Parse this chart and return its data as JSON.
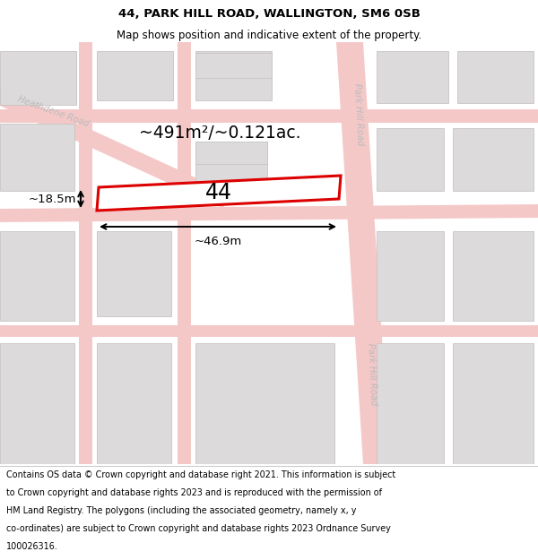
{
  "title_line1": "44, PARK HILL ROAD, WALLINGTON, SM6 0SB",
  "title_line2": "Map shows position and indicative extent of the property.",
  "footer_lines": [
    "Contains OS data © Crown copyright and database right 2021. This information is subject",
    "to Crown copyright and database rights 2023 and is reproduced with the permission of",
    "HM Land Registry. The polygons (including the associated geometry, namely x, y",
    "co-ordinates) are subject to Crown copyright and database rights 2023 Ordnance Survey",
    "100026316."
  ],
  "map_bg": "#f2f0f0",
  "road_fill": "#f5c8c8",
  "road_line": "#e8a0a0",
  "bld_fill": "#dcdada",
  "bld_edge": "#c8c4c4",
  "hi_fill": "#ffffff",
  "hi_edge": "#dd0000",
  "hi_lw": 2.2,
  "label_44": "44",
  "area_label": "~491m²/~0.121ac.",
  "dim_w": "~46.9m",
  "dim_h": "~18.5m",
  "road_lbl_left": "Heathdene Road",
  "road_lbl_right": "Park Hill Road",
  "label_color": "#bbbbbb",
  "title_color": "#000000",
  "footer_color": "#000000"
}
